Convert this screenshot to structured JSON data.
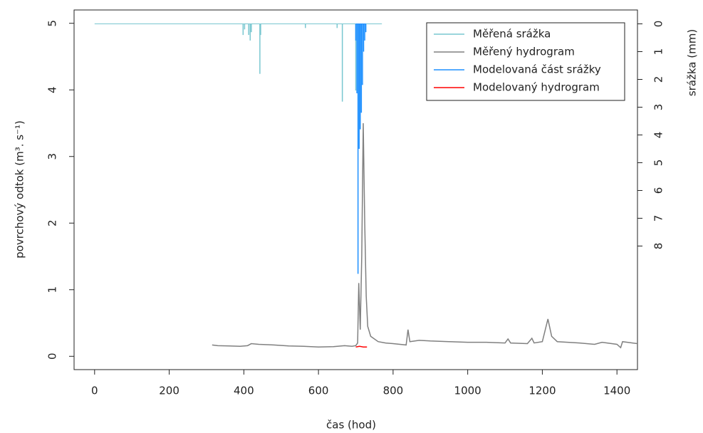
{
  "chart_data": {
    "type": "line",
    "xlabel": "čas (hod)",
    "ylabel": "povrchový odtok (m³. s⁻¹)",
    "y2label": "srážka (mm)",
    "xlim": [
      -55,
      1455
    ],
    "xticks": [
      0,
      200,
      400,
      600,
      800,
      1000,
      1200,
      1400
    ],
    "ylim": [
      -0.2,
      5.2
    ],
    "yticks": [
      0,
      1,
      2,
      3,
      4,
      5
    ],
    "y2lim": [
      12.45,
      -0.5
    ],
    "y2ticks": [
      0,
      1,
      2,
      3,
      4,
      5,
      6,
      7,
      8
    ],
    "legend": "top-right",
    "series": [
      {
        "name": "Měřená srážka",
        "color": "#79c7d0",
        "axis": "y2",
        "style": "spikes",
        "x": [
          0,
          398,
          402,
          413,
          417,
          420,
          443,
          445,
          565,
          650,
          664,
          700,
          770
        ],
        "values": [
          0,
          0.4,
          0.2,
          0.4,
          0.6,
          0.3,
          1.8,
          0.4,
          0.15,
          0.15,
          2.8,
          2.4,
          0
        ]
      },
      {
        "name": "Měřený hydrogram",
        "color": "#808080",
        "style": "line",
        "x": [
          315,
          330,
          360,
          390,
          410,
          420,
          440,
          480,
          520,
          560,
          600,
          640,
          670,
          690,
          700,
          705,
          708,
          712,
          716,
          720,
          724,
          728,
          732,
          740,
          760,
          780,
          800,
          835,
          840,
          845,
          870,
          900,
          950,
          1000,
          1050,
          1100,
          1108,
          1115,
          1160,
          1172,
          1178,
          1200,
          1215,
          1225,
          1240,
          1300,
          1340,
          1360,
          1400,
          1410,
          1415,
          1455
        ],
        "values": [
          0.17,
          0.16,
          0.155,
          0.15,
          0.16,
          0.19,
          0.18,
          0.17,
          0.155,
          0.15,
          0.14,
          0.145,
          0.16,
          0.15,
          0.16,
          0.2,
          1.1,
          0.4,
          1.5,
          3.5,
          2.0,
          0.9,
          0.45,
          0.3,
          0.22,
          0.2,
          0.19,
          0.17,
          0.4,
          0.22,
          0.24,
          0.23,
          0.22,
          0.21,
          0.21,
          0.2,
          0.26,
          0.2,
          0.19,
          0.27,
          0.2,
          0.22,
          0.56,
          0.3,
          0.22,
          0.2,
          0.18,
          0.21,
          0.18,
          0.13,
          0.22,
          0.19
        ]
      },
      {
        "name": "Modelovaná část srážky",
        "color": "#1e90ff",
        "axis": "y2",
        "style": "spikes",
        "x": [
          700,
          703,
          706,
          709,
          712,
          715,
          718,
          721,
          724,
          727
        ],
        "values": [
          0.6,
          2.5,
          9.0,
          4.5,
          3.8,
          3.2,
          2.2,
          1.0,
          0.6,
          0.3
        ]
      },
      {
        "name": "Modelovaný hydrogram",
        "color": "#ff0000",
        "style": "line",
        "x": [
          700,
          710,
          720,
          730
        ],
        "values": [
          0.14,
          0.15,
          0.14,
          0.14
        ]
      }
    ]
  }
}
